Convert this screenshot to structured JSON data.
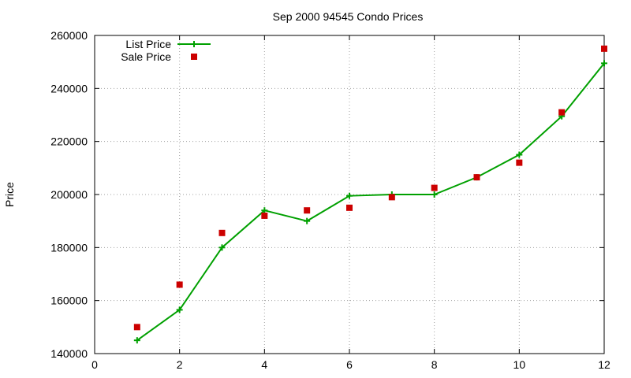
{
  "chart_data": {
    "type": "line",
    "title": "Sep 2000 94545 Condo Prices",
    "xlabel": "",
    "ylabel": "Price",
    "xlim": [
      0,
      12
    ],
    "ylim": [
      140000,
      260000
    ],
    "xticks": [
      0,
      2,
      4,
      6,
      8,
      10,
      12
    ],
    "yticks": [
      140000,
      160000,
      180000,
      200000,
      220000,
      240000,
      260000
    ],
    "grid": true,
    "legend_position": "top-left",
    "series": [
      {
        "name": "List Price",
        "style": "line+plus",
        "color": "#00a000",
        "x": [
          1,
          2,
          3,
          4,
          5,
          6,
          7,
          8,
          9,
          10,
          11,
          12
        ],
        "y": [
          145000,
          156500,
          180000,
          194000,
          190000,
          199500,
          200000,
          200000,
          206500,
          215000,
          229500,
          249500
        ]
      },
      {
        "name": "Sale Price",
        "style": "square",
        "color": "#cc0000",
        "x": [
          1,
          2,
          3,
          4,
          5,
          6,
          7,
          8,
          9,
          10,
          11,
          12
        ],
        "y": [
          150000,
          166000,
          185500,
          192000,
          194000,
          195000,
          199000,
          202500,
          206500,
          212000,
          231000,
          255000
        ]
      }
    ]
  }
}
